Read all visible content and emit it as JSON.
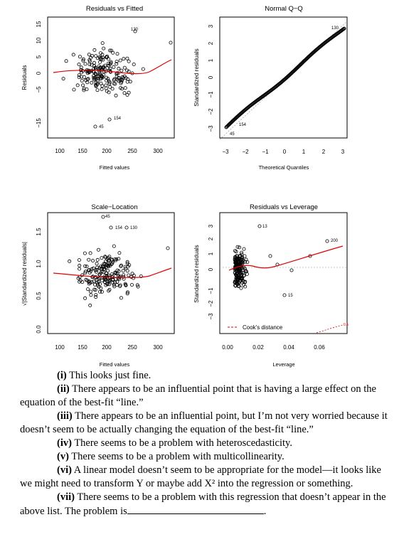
{
  "plots": [
    {
      "id": "rvf",
      "title": "Residuals vs Fitted",
      "xlabel": "Fitted values",
      "ylabel": "Residuals",
      "xticks": [
        "100",
        "150",
        "200",
        "250",
        "300"
      ],
      "yticks": [
        "−15",
        "−5",
        "0",
        "5",
        "10",
        "15"
      ],
      "point_labels": [
        "130",
        "154",
        "45"
      ]
    },
    {
      "id": "qq",
      "title": "Normal Q−Q",
      "xlabel": "Theoretical Quantiles",
      "ylabel": "Standardized residuals",
      "xticks": [
        "−3",
        "−2",
        "−1",
        "0",
        "1",
        "2",
        "3"
      ],
      "yticks": [
        "−3",
        "−2",
        "−1",
        "0",
        "1",
        "2",
        "3"
      ],
      "point_labels": [
        "130",
        "154",
        "45"
      ]
    },
    {
      "id": "sl",
      "title": "Scale−Location",
      "xlabel": "Fitted values",
      "ylabel": "√|Standardized residuals|",
      "xticks": [
        "100",
        "150",
        "200",
        "250",
        "300"
      ],
      "yticks": [
        "0.0",
        "0.5",
        "1.0",
        "1.5"
      ],
      "point_labels": [
        "45",
        "154",
        "130"
      ]
    },
    {
      "id": "rvl",
      "title": "Residuals vs Leverage",
      "xlabel": "Leverage",
      "ylabel": "Standardized residuals",
      "xticks": [
        "0.00",
        "0.02",
        "0.04",
        "0.06"
      ],
      "yticks": [
        "−3",
        "−2",
        "−1",
        "0",
        "1",
        "2",
        "3"
      ],
      "point_labels": [
        "13",
        "200",
        "15"
      ],
      "legend": "Cook's distance",
      "contour_label": "0.5"
    }
  ],
  "options": [
    {
      "num": "(i)",
      "text": "This looks just fine."
    },
    {
      "num": "(ii)",
      "text": "There appears to be an influential point that is having a large effect on the equation of the best-fit “line.”"
    },
    {
      "num": "(iii)",
      "text": "There appears to be an influential point, but I’m not very worried because it doesn’t seem to be actually changing the equation of the best-fit “line.”"
    },
    {
      "num": "(iv)",
      "text": "There seems to be a problem with heteroscedasticity."
    },
    {
      "num": "(v)",
      "text": "There seems to be a problem with multicollinearity."
    },
    {
      "num": "(vi)",
      "text": "A linear model doesn’t seem to be appropriate for the model—it looks like we might need to transform Y or maybe add X² into the regression or something."
    },
    {
      "num": "(vii)",
      "text": "There seems to be a problem with this regression that doesn’t appear in the above list. The problem is"
    }
  ]
}
